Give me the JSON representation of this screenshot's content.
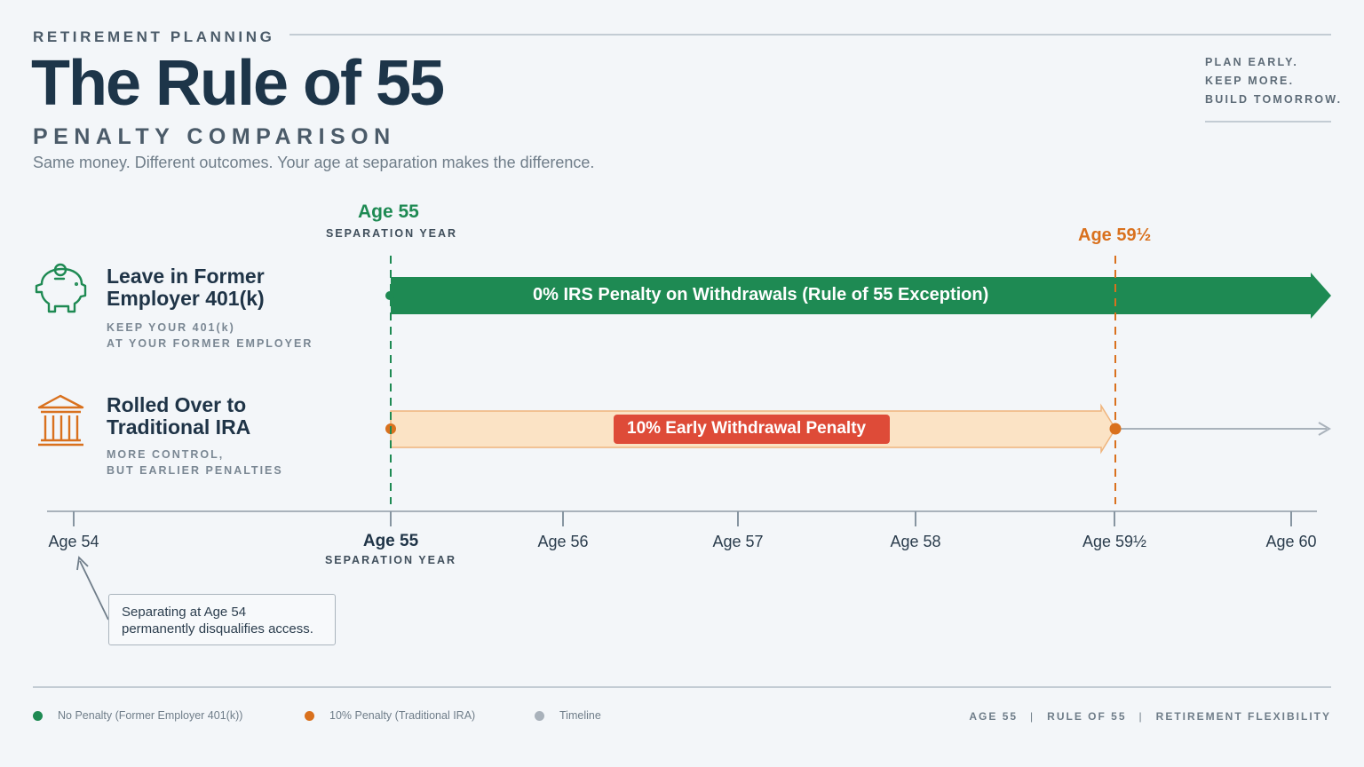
{
  "header": {
    "eyebrow": "RETIREMENT PLANNING",
    "title": "The Rule of 55",
    "subtitle": "PENALTY COMPARISON",
    "tagline": "Same money. Different outcomes. Your age at separation makes the difference.",
    "motto": [
      "PLAN EARLY.",
      "KEEP MORE.",
      "BUILD TOMORROW."
    ]
  },
  "markers": {
    "separation": {
      "age": "Age 55",
      "label": "SEPARATION YEAR"
    },
    "penalty_free": {
      "age": "Age 59½"
    }
  },
  "options": {
    "former_employer": {
      "icon": "piggy-bank-icon",
      "title": "Leave in Former Employer 401(k)",
      "sub_line1": "KEEP YOUR 401(k)",
      "sub_line2": "AT YOUR FORMER EMPLOYER",
      "bar_label": "0% IRS Penalty on Withdrawals (Rule of 55 Exception)"
    },
    "ira": {
      "icon": "bank-building-icon",
      "title": "Rolled Over to Traditional IRA",
      "sub_line1": "MORE CONTROL,",
      "sub_line2": "BUT EARLIER PENALTIES",
      "bar_label": "10% Early Withdrawal Penalty"
    }
  },
  "timeline": {
    "ticks": [
      {
        "label": "Age 54"
      },
      {
        "label": "Age 55",
        "sub": "SEPARATION YEAR"
      },
      {
        "label": "Age 56"
      },
      {
        "label": "Age 57"
      },
      {
        "label": "Age 58"
      },
      {
        "label": "Age 59½"
      },
      {
        "label": "Age 60"
      }
    ]
  },
  "note": {
    "line1": "Separating at Age 54",
    "line2": "permanently disqualifies access."
  },
  "legend": [
    {
      "label": "No Penalty (Former Employer 401(k))",
      "color": "#1e8a53"
    },
    {
      "label": "10% Penalty (Traditional IRA)",
      "color": "#d9711e"
    },
    {
      "label": "Timeline",
      "color": "#a9b2bb"
    }
  ],
  "footer": {
    "meta": [
      "AGE 55",
      "RULE OF 55",
      "RETIREMENT FLEXIBILITY"
    ]
  },
  "colors": {
    "green": "#1e8a53",
    "orange": "#d9711e",
    "penalty_red": "#de4b38",
    "ira_fill": "#fbe3c5",
    "navy": "#1d3549",
    "gray": "#a9b2bb"
  }
}
